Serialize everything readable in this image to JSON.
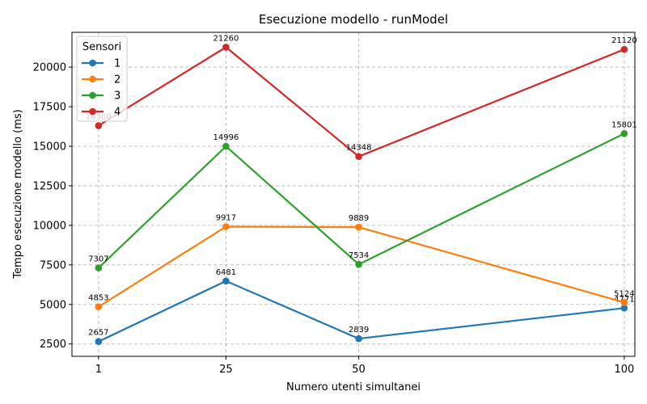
{
  "chart_data": {
    "type": "line",
    "title": "Esecuzione modello - runModel",
    "xlabel": "Numero utenti simultanei",
    "ylabel": "Tempo esecuzione modello (ms)",
    "x": [
      1,
      25,
      50,
      100
    ],
    "x_ticks": [
      "1",
      "25",
      "50",
      "100"
    ],
    "y_ticks": [
      2500,
      5000,
      7500,
      10000,
      12500,
      15000,
      17500,
      20000
    ],
    "ylim": [
      1720,
      22200
    ],
    "xlim": [
      -4,
      102
    ],
    "grid": true,
    "legend": {
      "title": "Sensori",
      "placement": "top-left"
    },
    "series": [
      {
        "name": "1",
        "color": "#1f77b4",
        "values": [
          2657,
          6481,
          2839,
          4771
        ],
        "labels": [
          "2657",
          "6481",
          "2839",
          "4771"
        ]
      },
      {
        "name": "2",
        "color": "#ff7f0e",
        "values": [
          4853,
          9917,
          9889,
          5124
        ],
        "labels": [
          "4853",
          "9917",
          "9889",
          "5124"
        ]
      },
      {
        "name": "3",
        "color": "#2ca02c",
        "values": [
          7307,
          14996,
          7534,
          15801
        ],
        "labels": [
          "7307",
          "14996",
          "7534",
          "15801"
        ]
      },
      {
        "name": "4",
        "color": "#d62728",
        "values": [
          16300,
          21260,
          14348,
          21120
        ],
        "labels": [
          "16300",
          "21260",
          "14348",
          "21120"
        ]
      }
    ]
  }
}
